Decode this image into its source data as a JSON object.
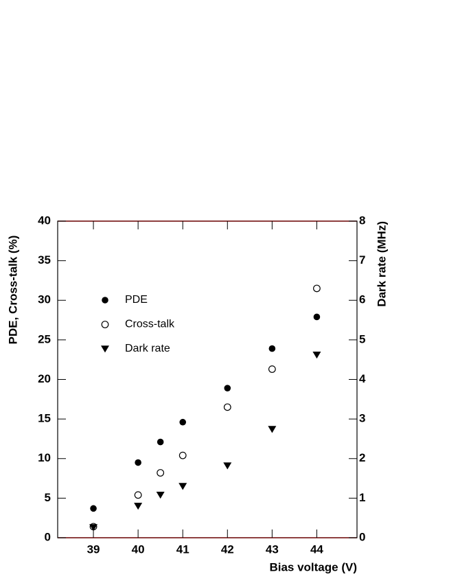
{
  "chart_data": {
    "type": "scatter",
    "x_label": "Bias voltage (V)",
    "y_label": "PDE, Cross-talk (%)",
    "y2_label": "Dark rate (MHz)",
    "x": [
      39,
      40,
      40.5,
      41,
      42,
      43,
      44
    ],
    "series": [
      {
        "name": "PDE",
        "color": "#000000",
        "marker": "circle",
        "values": [
          3.7,
          9.5,
          12.1,
          14.6,
          18.9,
          23.9,
          27.9
        ]
      },
      {
        "name": "Cross-talk",
        "color": "#000000",
        "marker": "open-circle",
        "values": [
          1.4,
          5.4,
          8.2,
          10.4,
          16.5,
          21.3,
          31.5
        ]
      },
      {
        "name": "Dark rate",
        "color": "#000000",
        "marker": "triangle-down",
        "axis": "y2",
        "values": [
          0.26,
          0.8,
          1.08,
          1.3,
          1.82,
          2.74,
          4.62
        ]
      }
    ],
    "xlim": [
      38.2,
      44.9
    ],
    "xticks": [
      39,
      40,
      41,
      42,
      43,
      44
    ],
    "ylim": [
      0,
      40
    ],
    "yticks": [
      0,
      5,
      10,
      15,
      20,
      25,
      30,
      35,
      40
    ],
    "y2lim": [
      0,
      8
    ],
    "y2ticks": [
      0,
      1,
      2,
      3,
      4,
      5,
      6,
      7,
      8
    ],
    "legend": "upper-left"
  }
}
